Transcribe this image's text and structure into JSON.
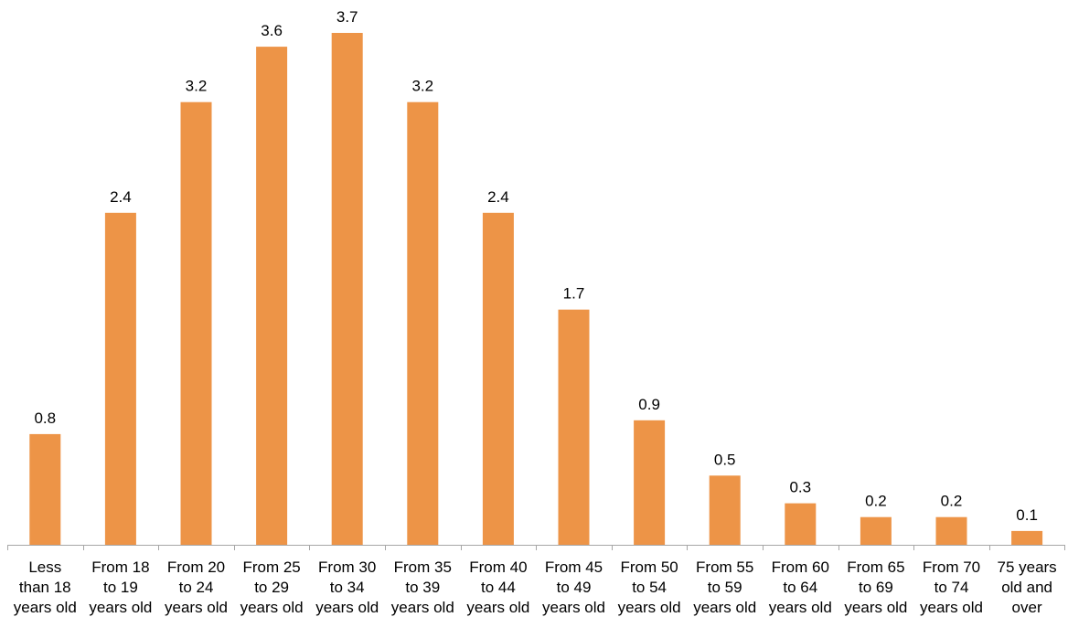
{
  "chart_data": {
    "type": "bar",
    "categories": [
      [
        "Less",
        "than 18",
        "years old"
      ],
      [
        "From 18",
        "to 19",
        "years old"
      ],
      [
        "From 20",
        "to 24",
        "years old"
      ],
      [
        "From 25",
        "to 29",
        "years old"
      ],
      [
        "From 30",
        "to 34",
        "years old"
      ],
      [
        "From 35",
        "to 39",
        "years old"
      ],
      [
        "From 40",
        "to 44",
        "years old"
      ],
      [
        "From 45",
        "to 49",
        "years old"
      ],
      [
        "From 50",
        "to 54",
        "years old"
      ],
      [
        "From 55",
        "to 59",
        "years old"
      ],
      [
        "From 60",
        "to 64",
        "years old"
      ],
      [
        "From 65",
        "to 69",
        "years old"
      ],
      [
        "From 70",
        "to 74",
        "years old"
      ],
      [
        "75 years",
        "old and",
        "over"
      ]
    ],
    "values": [
      0.8,
      2.4,
      3.2,
      3.6,
      3.7,
      3.2,
      2.4,
      1.7,
      0.9,
      0.5,
      0.3,
      0.2,
      0.2,
      0.1
    ],
    "value_labels": [
      "0.8",
      "2.4",
      "3.2",
      "3.6",
      "3.7",
      "3.2",
      "2.4",
      "1.7",
      "0.9",
      "0.5",
      "0.3",
      "0.2",
      "0.2",
      "0.1"
    ],
    "bar_color": "#ED9447",
    "axis_color": "#A6A6A6",
    "grid": false,
    "legend": "none",
    "ylim": [
      0,
      3.7
    ]
  }
}
